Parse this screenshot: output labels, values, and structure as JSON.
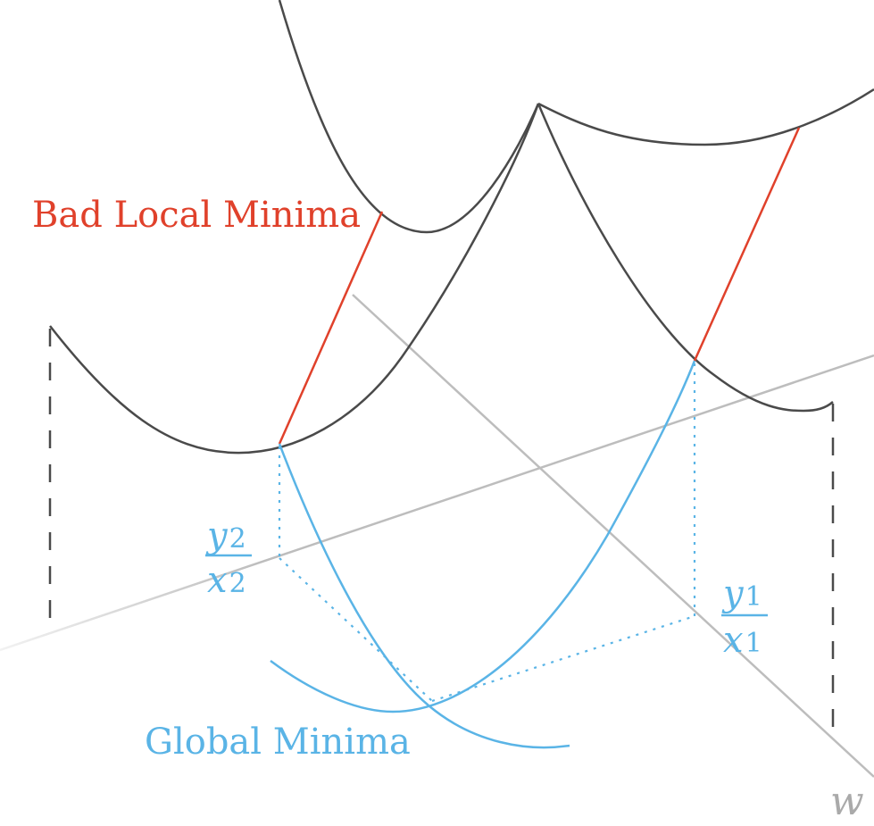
{
  "labels": {
    "bad_local_minima": "Bad Local Minima",
    "global_minima": "Global Minima",
    "axis_w": "w",
    "y2": "y",
    "y2_sub": "2",
    "x2": "x",
    "x2_sub": "2",
    "y1": "y",
    "y1_sub": "1",
    "x1": "x",
    "x1_sub": "1"
  },
  "colors": {
    "loss_curve": "#4a4a4a",
    "bad_minima": "#e0412b",
    "global_minima": "#5ab4e6",
    "axis": "#bdbdbd"
  }
}
